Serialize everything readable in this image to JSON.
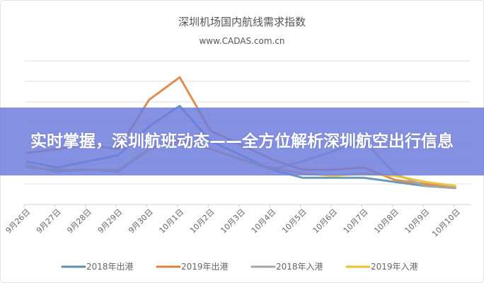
{
  "banner": {
    "headline": "实时掌握，深圳航班动态——全方位解析深圳航空出行信息"
  },
  "chart_data": {
    "type": "line",
    "title": "深圳机场国内航线需求指数",
    "subtitle": "www.CADAS.com.cn",
    "categories": [
      "9月26日",
      "9月27日",
      "9月28日",
      "9月29日",
      "9月30日",
      "10月1日",
      "10月2日",
      "10月3日",
      "10月4日",
      "10月5日",
      "10月6日",
      "10月7日",
      "10月8日",
      "10月9日",
      "10月10日"
    ],
    "ylim": [
      0,
      7
    ],
    "grid": true,
    "legend_position": "bottom",
    "series": [
      {
        "name": "2018年出港",
        "color": "#5b8fb0",
        "values": [
          2.1,
          1.8,
          2.1,
          2.4,
          3.8,
          4.8,
          3.1,
          2.4,
          1.7,
          1.3,
          1.3,
          1.3,
          1.1,
          0.9,
          0.8
        ]
      },
      {
        "name": "2019年出港",
        "color": "#d9823f",
        "values": [
          2.5,
          2.7,
          2.9,
          2.7,
          5.1,
          6.2,
          3.6,
          2.9,
          2.2,
          1.7,
          1.7,
          1.8,
          1.2,
          1.0,
          0.8
        ]
      },
      {
        "name": "2018年入港",
        "color": "#a5a5a5",
        "values": [
          1.9,
          1.6,
          1.7,
          1.6,
          2.7,
          3.2,
          2.7,
          2.2,
          1.7,
          2.1,
          2.6,
          3.1,
          1.5,
          0.9,
          0.8
        ]
      },
      {
        "name": "2019年入港",
        "color": "#e8c030",
        "values": [
          1.8,
          1.7,
          1.7,
          1.7,
          2.7,
          3.1,
          2.7,
          2.2,
          1.8,
          1.5,
          1.4,
          1.5,
          1.4,
          1.1,
          0.9
        ]
      }
    ]
  }
}
